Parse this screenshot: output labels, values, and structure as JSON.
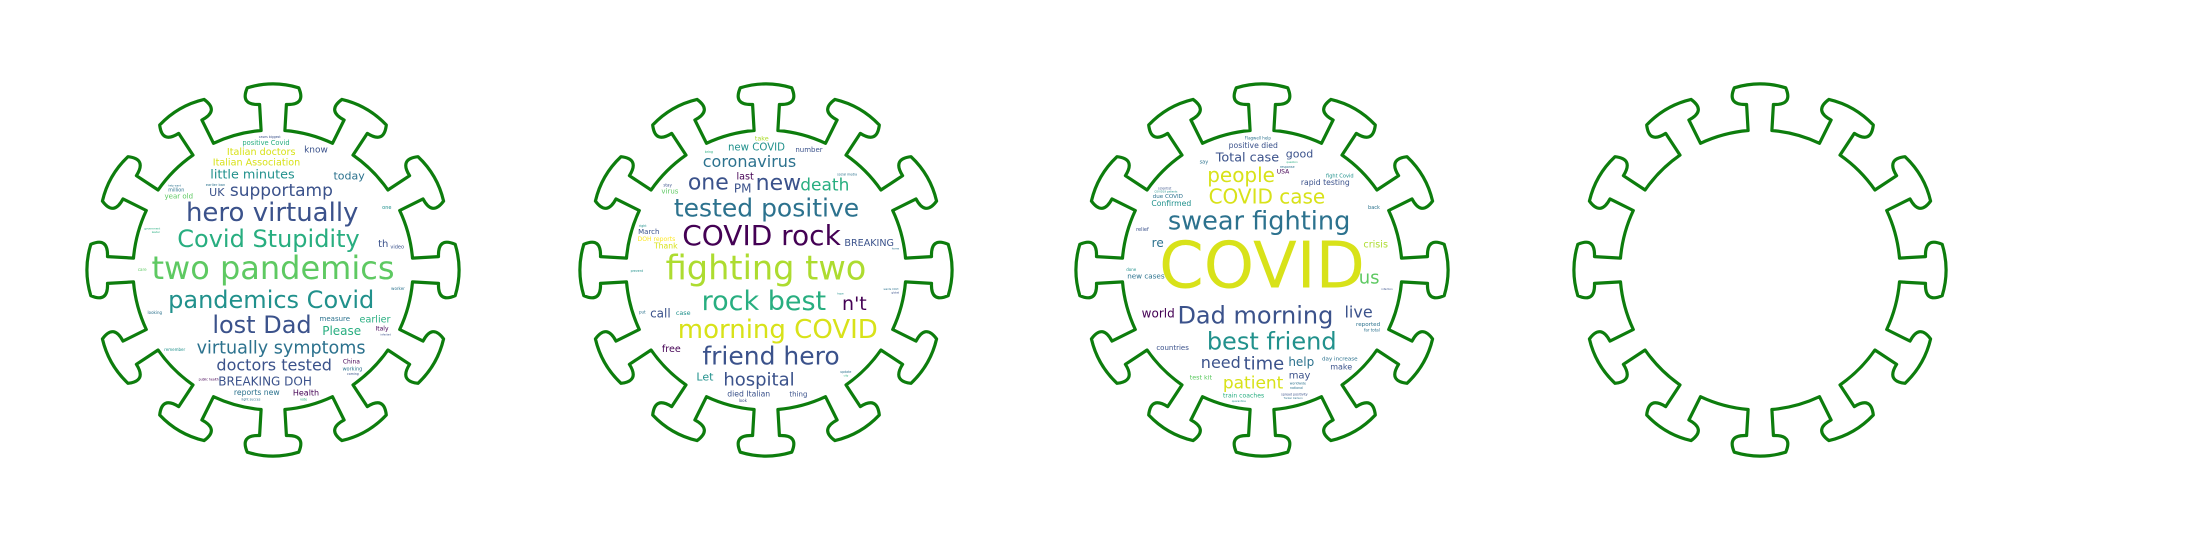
{
  "palette": {
    "outline": "#0d7d0d",
    "viridis": [
      "#440154",
      "#3b528b",
      "#2c728e",
      "#21918c",
      "#28ae80",
      "#5ec962",
      "#addc30",
      "#d8e219",
      "#fde725"
    ]
  },
  "clouds": [
    {
      "words": [
        {
          "t": "two pandemics",
          "s": 40,
          "c": 5
        },
        {
          "t": "Covid Stupidity",
          "s": 30,
          "c": 4
        },
        {
          "t": "pandemics Covid",
          "s": 30,
          "c": 3
        },
        {
          "t": "hero virtually",
          "s": 26,
          "c": 1
        },
        {
          "t": "virtually symptoms",
          "s": 22,
          "c": 2
        },
        {
          "t": "lost Dad",
          "s": 24,
          "c": 1
        },
        {
          "t": "doctors tested",
          "s": 16,
          "c": 1
        },
        {
          "t": "little minutes",
          "s": 16,
          "c": 3
        },
        {
          "t": "Italian Association",
          "s": 15,
          "c": 7
        },
        {
          "t": "BREAKING DOH",
          "s": 15,
          "c": 1
        },
        {
          "t": "Italian doctors",
          "s": 15,
          "c": 7
        },
        {
          "t": "supportamp",
          "s": 17,
          "c": 1
        },
        {
          "t": "reports new",
          "s": 15,
          "c": 2
        },
        {
          "t": "positive Covid",
          "s": 13,
          "c": 4
        },
        {
          "t": "Please",
          "s": 15,
          "c": 4
        },
        {
          "t": "today",
          "s": 11,
          "c": 2
        },
        {
          "t": "UK",
          "s": 11,
          "c": 1
        },
        {
          "t": "th",
          "s": 10,
          "c": 1
        },
        {
          "t": "Health",
          "s": 10,
          "c": 0
        },
        {
          "t": "year old",
          "s": 11,
          "c": 5
        },
        {
          "t": "measure",
          "s": 11,
          "c": 2
        },
        {
          "t": "earlier",
          "s": 12,
          "c": 4
        },
        {
          "t": "daysingle day",
          "s": 11,
          "c": 1
        },
        {
          "t": "reverses earlier",
          "s": 10,
          "c": 1
        },
        {
          "t": "know",
          "s": 9,
          "c": 1
        },
        {
          "t": "Italy",
          "s": 6,
          "c": 0
        },
        {
          "t": "China",
          "s": 6,
          "c": 0
        },
        {
          "t": "million",
          "s": 6,
          "c": 2
        },
        {
          "t": "remember",
          "s": 5,
          "c": 3
        },
        {
          "t": "working",
          "s": 5,
          "c": 2
        },
        {
          "t": "video",
          "s": 5,
          "c": 1
        },
        {
          "t": "light succes",
          "s": 5,
          "c": 2
        },
        {
          "t": "earlier ban",
          "s": 7,
          "c": 2
        },
        {
          "t": "worker",
          "s": 5,
          "c": 2
        },
        {
          "t": "cases biggest",
          "s": 5,
          "c": 1
        },
        {
          "t": "looking",
          "s": 5,
          "c": 2
        },
        {
          "t": "government",
          "s": 5,
          "c": 4
        },
        {
          "t": "deaths new",
          "s": 5,
          "c": 2
        },
        {
          "t": "infected",
          "s": 5,
          "c": 1
        },
        {
          "t": "public health",
          "s": 6,
          "c": 0
        },
        {
          "t": "help ward",
          "s": 5,
          "c": 2
        },
        {
          "t": "Coronavirus novel",
          "s": 5,
          "c": 3
        },
        {
          "t": "Railways converted",
          "s": 5,
          "c": 2
        },
        {
          "t": "increase far",
          "s": 5,
          "c": 2
        },
        {
          "t": "coming",
          "s": 5,
          "c": 1
        },
        {
          "t": "Sanitizer Health",
          "s": 5,
          "c": 2
        },
        {
          "t": "Producing Combat",
          "s": 5,
          "c": 1
        },
        {
          "t": "care",
          "s": 5,
          "c": 5
        },
        {
          "t": "leader",
          "s": 5,
          "c": 4
        },
        {
          "t": "one",
          "s": 5,
          "c": 3
        },
        {
          "t": "vote",
          "s": 5,
          "c": 4
        }
      ]
    },
    {
      "words": [
        {
          "t": "fighting two",
          "s": 42,
          "c": 6
        },
        {
          "t": "COVID rock",
          "s": 28,
          "c": 0
        },
        {
          "t": "morning COVID",
          "s": 26,
          "c": 7
        },
        {
          "t": "tested positive",
          "s": 25,
          "c": 2
        },
        {
          "t": "rock best",
          "s": 27,
          "c": 4
        },
        {
          "t": "friend hero",
          "s": 25,
          "c": 1
        },
        {
          "t": "coronavirus",
          "s": 20,
          "c": 2
        },
        {
          "t": "new",
          "s": 22,
          "c": 1
        },
        {
          "t": "hospital",
          "s": 18,
          "c": 1
        },
        {
          "t": "one",
          "s": 22,
          "c": 1
        },
        {
          "t": "BREAKING",
          "s": 15,
          "c": 1
        },
        {
          "t": "new COVID",
          "s": 16,
          "c": 3
        },
        {
          "t": "DOH reports",
          "s": 12,
          "c": 8
        },
        {
          "t": "Association Doctors",
          "s": 15,
          "c": 4
        },
        {
          "t": "n't",
          "s": 19,
          "c": 0
        },
        {
          "t": "PM",
          "s": 12,
          "c": 1
        },
        {
          "t": "died Italian",
          "s": 15,
          "c": 1
        },
        {
          "t": "death",
          "s": 17,
          "c": 4
        },
        {
          "t": "March",
          "s": 11,
          "c": 1
        },
        {
          "t": "number",
          "s": 11,
          "c": 1
        },
        {
          "t": "case",
          "s": 10,
          "c": 3
        },
        {
          "t": "call",
          "s": 12,
          "c": 1
        },
        {
          "t": "last",
          "s": 12,
          "c": 0
        },
        {
          "t": "bringing rapid",
          "s": 12,
          "c": 5
        },
        {
          "t": "Thank",
          "s": 12,
          "c": 7
        },
        {
          "t": "free",
          "s": 12,
          "c": 0
        },
        {
          "t": "Let",
          "s": 11,
          "c": 3
        },
        {
          "t": "virus",
          "s": 11,
          "c": 5
        },
        {
          "t": "BREAKING launching",
          "s": 12,
          "c": 3
        },
        {
          "t": "thing",
          "s": 11,
          "c": 1
        },
        {
          "t": "Covid test",
          "s": 11,
          "c": 5
        },
        {
          "t": "take",
          "s": 10,
          "c": 6
        },
        {
          "t": "ban hydroxychloroquine",
          "s": 7,
          "c": 1
        },
        {
          "t": "social media",
          "s": 5,
          "c": 2
        },
        {
          "t": "patients light",
          "s": 5,
          "c": 1
        },
        {
          "t": "wards COVI",
          "s": 5,
          "c": 2
        },
        {
          "t": "prevent",
          "s": 5,
          "c": 3
        },
        {
          "t": "Combat Coronavirus",
          "s": 5,
          "c": 1
        },
        {
          "t": "physician told",
          "s": 5,
          "c": 1
        },
        {
          "t": "stay",
          "s": 5,
          "c": 1
        },
        {
          "t": "update",
          "s": 5,
          "c": 2
        },
        {
          "t": "right",
          "s": 5,
          "c": 3
        },
        {
          "t": "put",
          "s": 5,
          "c": 2
        },
        {
          "t": "look",
          "s": 5,
          "c": 1
        },
        {
          "t": "bring",
          "s": 5,
          "c": 4
        },
        {
          "t": "outbreak",
          "s": 5,
          "c": 2
        },
        {
          "t": "point care",
          "s": 5,
          "c": 1
        },
        {
          "t": "global",
          "s": 5,
          "c": 1
        },
        {
          "t": "bringing total",
          "s": 5,
          "c": 2
        },
        {
          "t": "converted train",
          "s": 5,
          "c": 3
        },
        {
          "t": "NYC critical",
          "s": 5,
          "c": 2
        },
        {
          "t": "effort",
          "s": 5,
          "c": 1
        },
        {
          "t": "hope",
          "s": 5,
          "c": 3
        },
        {
          "t": "told Fuentes",
          "s": 5,
          "c": 2
        },
        {
          "t": "home",
          "s": 5,
          "c": 2
        },
        {
          "t": "confirmed case",
          "s": 5,
          "c": 1
        },
        {
          "t": "city",
          "s": 5,
          "c": 4
        }
      ]
    },
    {
      "words": [
        {
          "t": "COVID",
          "s": 64,
          "c": 7
        },
        {
          "t": "swear fighting",
          "s": 32,
          "c": 2
        },
        {
          "t": "Dad morning",
          "s": 24,
          "c": 1
        },
        {
          "t": "best friend",
          "s": 24,
          "c": 3
        },
        {
          "t": "COVID case",
          "s": 20,
          "c": 7
        },
        {
          "t": "people",
          "s": 20,
          "c": 7
        },
        {
          "t": "patient",
          "s": 17,
          "c": 7
        },
        {
          "t": "Total case",
          "s": 16,
          "c": 1
        },
        {
          "t": "live",
          "s": 16,
          "c": 1
        },
        {
          "t": "need",
          "s": 16,
          "c": 1
        },
        {
          "t": "test detect",
          "s": 14,
          "c": 4
        },
        {
          "t": "train coaches",
          "s": 12,
          "c": 4
        },
        {
          "t": "rapid testing",
          "s": 15,
          "c": 1
        },
        {
          "t": "day increase",
          "s": 11,
          "c": 2
        },
        {
          "t": "positive died",
          "s": 15,
          "c": 1
        },
        {
          "t": "time",
          "s": 18,
          "c": 1
        },
        {
          "t": "world",
          "s": 15,
          "c": 0
        },
        {
          "t": "launching test",
          "s": 11,
          "c": 1
        },
        {
          "t": "new cases",
          "s": 14,
          "c": 2
        },
        {
          "t": "us",
          "s": 18,
          "c": 5
        },
        {
          "t": "crisis",
          "s": 12,
          "c": 6
        },
        {
          "t": "help",
          "s": 12,
          "c": 2
        },
        {
          "t": "testing frontline",
          "s": 11,
          "c": 3
        },
        {
          "t": "fight Covid",
          "s": 10,
          "c": 3
        },
        {
          "t": "Confirmed",
          "s": 15,
          "c": 3
        },
        {
          "t": "biggest single",
          "s": 11,
          "c": 1
        },
        {
          "t": "minutes bringing",
          "s": 11,
          "c": 2
        },
        {
          "t": "detect COVID",
          "s": 10,
          "c": 4
        },
        {
          "t": "COVID little",
          "s": 10,
          "c": 2
        },
        {
          "t": "countries",
          "s": 11,
          "c": 1
        },
        {
          "t": "good",
          "s": 11,
          "c": 1
        },
        {
          "t": "reported",
          "s": 11,
          "c": 2
        },
        {
          "t": "may",
          "s": 10,
          "c": 1
        },
        {
          "t": "test kit",
          "s": 10,
          "c": 5
        },
        {
          "t": "due COVID",
          "s": 11,
          "c": 2
        },
        {
          "t": "make",
          "s": 10,
          "c": 1
        },
        {
          "t": "re",
          "s": 12,
          "c": 2
        },
        {
          "t": "relief",
          "s": 5,
          "c": 1
        },
        {
          "t": "spread positivity",
          "s": 5,
          "c": 1
        },
        {
          "t": "Flagwell help",
          "s": 5,
          "c": 2
        },
        {
          "t": "USA",
          "s": 6,
          "c": 0
        },
        {
          "t": "hydroxychloroquine treating",
          "s": 5,
          "c": 5
        },
        {
          "t": "far total",
          "s": 5,
          "c": 2
        },
        {
          "t": "COVID19 patients",
          "s": 5,
          "c": 3
        },
        {
          "t": "coaches isolation",
          "s": 5,
          "c": 2
        },
        {
          "t": "response",
          "s": 5,
          "c": 2
        },
        {
          "t": "French government",
          "s": 5,
          "c": 2
        },
        {
          "t": "treating COVID19",
          "s": 5,
          "c": 1
        },
        {
          "t": "worldwide",
          "s": 5,
          "c": 2
        },
        {
          "t": "Tucker Carlson",
          "s": 5,
          "c": 2
        },
        {
          "t": "scientist",
          "s": 5,
          "c": 1
        },
        {
          "t": "isolation wards",
          "s": 5,
          "c": 2
        },
        {
          "t": "infection",
          "s": 5,
          "c": 1
        },
        {
          "t": "Indian Railways",
          "s": 5,
          "c": 3
        },
        {
          "t": "back",
          "s": 5,
          "c": 2
        },
        {
          "t": "national",
          "s": 5,
          "c": 2
        },
        {
          "t": "quarantine",
          "s": 5,
          "c": 3
        },
        {
          "t": "question",
          "s": 5,
          "c": 4
        },
        {
          "t": "done",
          "s": 5,
          "c": 3
        },
        {
          "t": "say",
          "s": 5,
          "c": 2
        }
      ]
    },
    {
      "words": []
    }
  ]
}
